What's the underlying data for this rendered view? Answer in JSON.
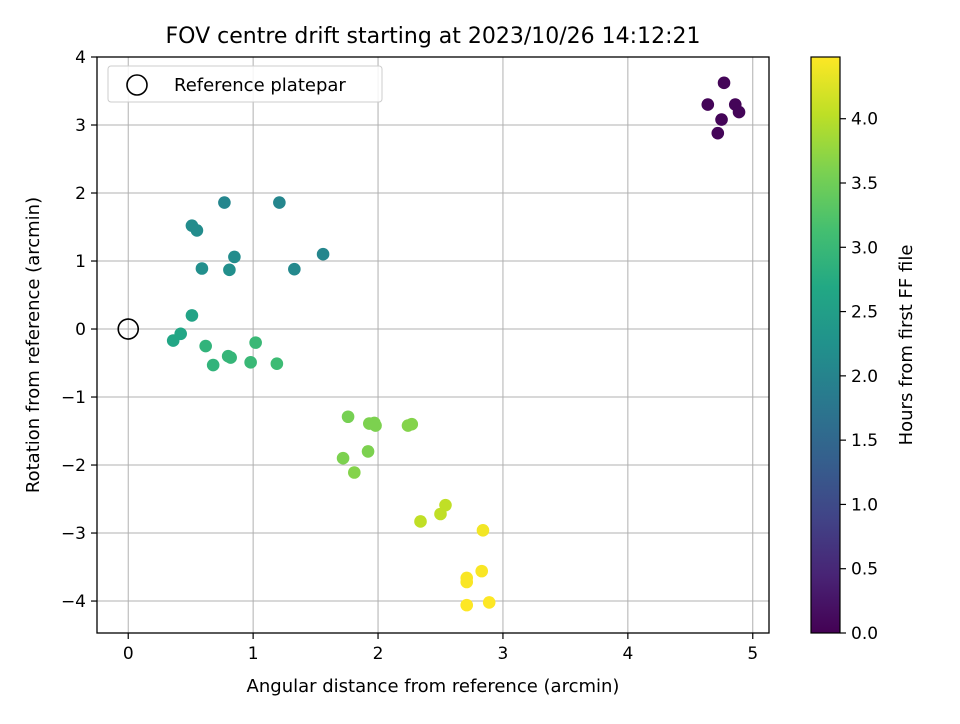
{
  "chart_data": {
    "type": "scatter",
    "title": "FOV centre drift starting at 2023/10/26 14:12:21",
    "xlabel": "Angular distance from reference (arcmin)",
    "ylabel": "Rotation from reference (arcmin)",
    "xlim": [
      -0.25,
      5.13
    ],
    "ylim": [
      -4.47,
      4.0
    ],
    "xticks": [
      0,
      1,
      2,
      3,
      4,
      5
    ],
    "xtick_labels": [
      "0",
      "1",
      "2",
      "3",
      "4",
      "5"
    ],
    "yticks": [
      -4,
      -3,
      -2,
      -1,
      0,
      1,
      2,
      3,
      4
    ],
    "ytick_labels": [
      "−4",
      "−3",
      "−2",
      "−1",
      "0",
      "1",
      "2",
      "3",
      "4"
    ],
    "grid": true,
    "legend": {
      "position": "top-left",
      "entries": [
        {
          "label": "Reference platepar",
          "marker": "open-circle"
        }
      ]
    },
    "reference_point": {
      "x": 0,
      "y": 0
    },
    "colorbar": {
      "label": "Hours from first FF file",
      "min": 0.0,
      "max": 4.48,
      "colormap": "viridis",
      "ticks": [
        0.0,
        0.5,
        1.0,
        1.5,
        2.0,
        2.5,
        3.0,
        3.5,
        4.0
      ],
      "tick_labels": [
        "0.0",
        "0.5",
        "1.0",
        "1.5",
        "2.0",
        "2.5",
        "3.0",
        "3.5",
        "4.0"
      ]
    },
    "series": [
      {
        "points": [
          {
            "x": 4.77,
            "y": 3.62,
            "c": 0.05
          },
          {
            "x": 4.64,
            "y": 3.3,
            "c": 0.05
          },
          {
            "x": 4.86,
            "y": 3.3,
            "c": 0.05
          },
          {
            "x": 4.89,
            "y": 3.19,
            "c": 0.05
          },
          {
            "x": 4.75,
            "y": 3.08,
            "c": 0.05
          },
          {
            "x": 4.72,
            "y": 2.88,
            "c": 0.05
          },
          {
            "x": 0.77,
            "y": 1.86,
            "c": 2.05
          },
          {
            "x": 1.21,
            "y": 1.86,
            "c": 2.05
          },
          {
            "x": 0.51,
            "y": 1.52,
            "c": 2.15
          },
          {
            "x": 0.55,
            "y": 1.45,
            "c": 2.15
          },
          {
            "x": 0.85,
            "y": 1.06,
            "c": 2.15
          },
          {
            "x": 1.56,
            "y": 1.1,
            "c": 2.05
          },
          {
            "x": 0.59,
            "y": 0.89,
            "c": 2.2
          },
          {
            "x": 0.81,
            "y": 0.87,
            "c": 2.2
          },
          {
            "x": 1.33,
            "y": 0.88,
            "c": 2.1
          },
          {
            "x": 0.51,
            "y": 0.2,
            "c": 2.6
          },
          {
            "x": 0.42,
            "y": -0.07,
            "c": 2.65
          },
          {
            "x": 0.36,
            "y": -0.17,
            "c": 2.65
          },
          {
            "x": 0.62,
            "y": -0.25,
            "c": 2.9
          },
          {
            "x": 1.02,
            "y": -0.2,
            "c": 3.0
          },
          {
            "x": 0.8,
            "y": -0.4,
            "c": 2.95
          },
          {
            "x": 0.82,
            "y": -0.42,
            "c": 2.95
          },
          {
            "x": 0.68,
            "y": -0.53,
            "c": 2.9
          },
          {
            "x": 0.98,
            "y": -0.49,
            "c": 3.0
          },
          {
            "x": 1.19,
            "y": -0.51,
            "c": 3.05
          },
          {
            "x": 1.76,
            "y": -1.29,
            "c": 3.55
          },
          {
            "x": 1.93,
            "y": -1.39,
            "c": 3.6
          },
          {
            "x": 1.97,
            "y": -1.38,
            "c": 3.6
          },
          {
            "x": 1.98,
            "y": -1.42,
            "c": 3.6
          },
          {
            "x": 2.24,
            "y": -1.42,
            "c": 3.65
          },
          {
            "x": 2.27,
            "y": -1.4,
            "c": 3.65
          },
          {
            "x": 1.72,
            "y": -1.9,
            "c": 3.6
          },
          {
            "x": 1.92,
            "y": -1.8,
            "c": 3.6
          },
          {
            "x": 1.81,
            "y": -2.11,
            "c": 3.65
          },
          {
            "x": 2.54,
            "y": -2.59,
            "c": 4.05
          },
          {
            "x": 2.5,
            "y": -2.72,
            "c": 4.05
          },
          {
            "x": 2.34,
            "y": -2.83,
            "c": 4.05
          },
          {
            "x": 2.84,
            "y": -2.96,
            "c": 4.4
          },
          {
            "x": 2.83,
            "y": -3.56,
            "c": 4.45
          },
          {
            "x": 2.71,
            "y": -3.66,
            "c": 4.45
          },
          {
            "x": 2.71,
            "y": -3.72,
            "c": 4.45
          },
          {
            "x": 2.71,
            "y": -4.06,
            "c": 4.48
          },
          {
            "x": 2.89,
            "y": -4.02,
            "c": 4.48
          }
        ]
      }
    ]
  }
}
